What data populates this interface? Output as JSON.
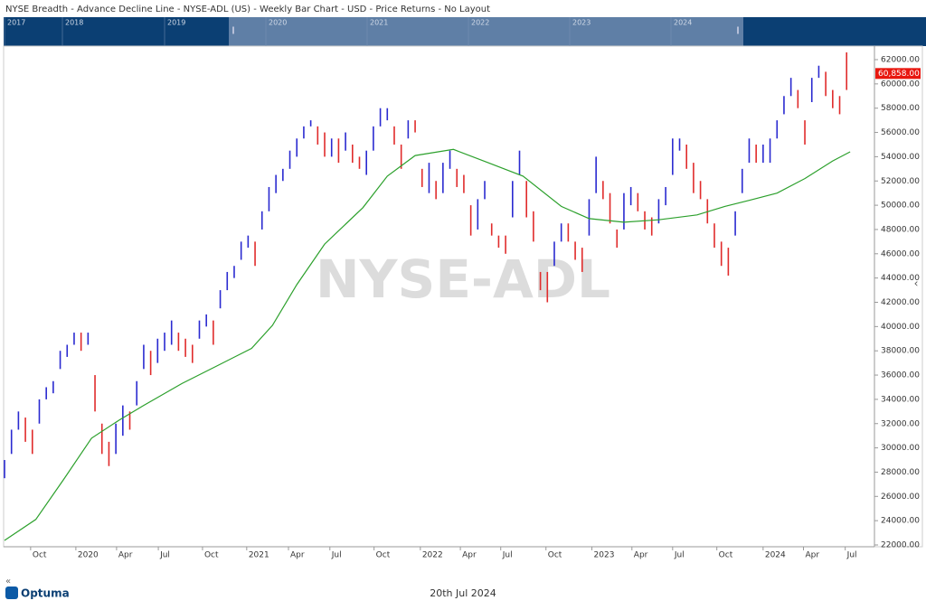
{
  "header": {
    "title": "NYSE Breadth - Advance Decline Line - NYSE-ADL (US) - Weekly Bar Chart - USD - Price Returns - No Layout"
  },
  "navigator": {
    "years": [
      "2017",
      "2018",
      "2019",
      "2020",
      "2021",
      "2022",
      "2023",
      "2024"
    ]
  },
  "watermark": "NYSE-ADL",
  "footer": {
    "brand": "Optuma",
    "date": "20th Jul 2024"
  },
  "chart_data": {
    "type": "ohlc",
    "xlim": [
      0,
      250
    ],
    "ylim": [
      22000,
      62000
    ],
    "xticks": [
      {
        "value": 7.5,
        "label": "Oct"
      },
      {
        "value": 20.5,
        "label": "2020"
      },
      {
        "value": 32.2,
        "label": "Apr"
      },
      {
        "value": 44.2,
        "label": "Jul"
      },
      {
        "value": 56.9,
        "label": "Oct"
      },
      {
        "value": 69.6,
        "label": "2021"
      },
      {
        "value": 81.6,
        "label": "Apr"
      },
      {
        "value": 93.5,
        "label": "Jul"
      },
      {
        "value": 106.2,
        "label": "Oct"
      },
      {
        "value": 119.5,
        "label": "2022"
      },
      {
        "value": 131,
        "label": "Apr"
      },
      {
        "value": 142.6,
        "label": "Jul"
      },
      {
        "value": 155.6,
        "label": "Oct"
      },
      {
        "value": 168.8,
        "label": "2023"
      },
      {
        "value": 180.3,
        "label": "Apr"
      },
      {
        "value": 192,
        "label": "Jul"
      },
      {
        "value": 204.7,
        "label": "Oct"
      },
      {
        "value": 218,
        "label": "2024"
      },
      {
        "value": 229.6,
        "label": "Apr"
      },
      {
        "value": 241.6,
        "label": "Jul"
      }
    ],
    "yticks": [
      {
        "value": 22000,
        "label": "22000.00"
      },
      {
        "value": 24000,
        "label": "24000.00"
      },
      {
        "value": 26000,
        "label": "26000.00"
      },
      {
        "value": 28000,
        "label": "28000.00"
      },
      {
        "value": 30000,
        "label": "30000.00"
      },
      {
        "value": 32000,
        "label": "32000.00"
      },
      {
        "value": 34000,
        "label": "34000.00"
      },
      {
        "value": 36000,
        "label": "36000.00"
      },
      {
        "value": 38000,
        "label": "38000.00"
      },
      {
        "value": 40000,
        "label": "40000.00"
      },
      {
        "value": 42000,
        "label": "42000.00"
      },
      {
        "value": 44000,
        "label": "44000.00"
      },
      {
        "value": 46000,
        "label": "46000.00"
      },
      {
        "value": 48000,
        "label": "48000.00"
      },
      {
        "value": 50000,
        "label": "50000.00"
      },
      {
        "value": 52000,
        "label": "52000.00"
      },
      {
        "value": 54000,
        "label": "54000.00"
      },
      {
        "value": 56000,
        "label": "56000.00"
      },
      {
        "value": 58000,
        "label": "58000.00"
      },
      {
        "value": 60000,
        "label": "60000.00"
      },
      {
        "value": 62000,
        "label": "62000.00"
      }
    ],
    "last_price": {
      "value": 60858,
      "label": "60,858.00",
      "color": "#e8170f"
    },
    "bars": {
      "x": [
        0,
        2,
        4,
        6,
        8,
        10,
        12,
        14,
        16,
        18,
        20,
        22,
        24,
        26,
        28,
        30,
        32,
        34,
        36,
        38,
        40,
        42,
        44,
        46,
        48,
        50,
        52,
        54,
        56,
        58,
        60,
        62,
        64,
        66,
        68,
        70,
        72,
        74,
        76,
        78,
        80,
        82,
        84,
        86,
        88,
        90,
        92,
        94,
        96,
        98,
        100,
        102,
        104,
        106,
        108,
        110,
        112,
        114,
        116,
        118,
        120,
        122,
        124,
        126,
        128,
        130,
        132,
        134,
        136,
        138,
        140,
        142,
        144,
        146,
        148,
        150,
        152,
        154,
        156,
        158,
        160,
        162,
        164,
        166,
        168,
        170,
        172,
        174,
        176,
        178,
        180,
        182,
        184,
        186,
        188,
        190,
        192,
        194,
        196,
        198,
        200,
        202,
        204,
        206,
        208,
        210,
        212,
        214,
        216,
        218,
        220,
        222,
        224,
        226,
        228,
        230,
        232,
        234,
        236,
        238,
        240,
        242
      ],
      "low": [
        27500,
        29500,
        31500,
        30500,
        29500,
        32000,
        34000,
        34500,
        36500,
        37500,
        38500,
        38000,
        38500,
        33000,
        29500,
        28500,
        29500,
        31000,
        31500,
        33500,
        36500,
        36000,
        37000,
        38000,
        38500,
        38000,
        37500,
        37000,
        39000,
        40000,
        38500,
        41500,
        43000,
        44000,
        45500,
        46500,
        45000,
        48000,
        49500,
        51000,
        52000,
        53000,
        54000,
        55500,
        56500,
        55000,
        54000,
        54000,
        53500,
        54500,
        53500,
        53000,
        52500,
        54500,
        56500,
        57000,
        55000,
        53000,
        55500,
        56000,
        51500,
        51000,
        50500,
        51000,
        53000,
        51500,
        51000,
        47500,
        48000,
        50500,
        47500,
        46500,
        46000,
        49000,
        52500,
        49000,
        47000,
        43000,
        42000,
        45000,
        47000,
        47000,
        45500,
        44500,
        47500,
        51000,
        50500,
        48500,
        46500,
        48000,
        50000,
        49500,
        48000,
        47500,
        48500,
        50000,
        52500,
        54500,
        53000,
        51000,
        50500,
        48500,
        46500,
        45000,
        44200,
        47500,
        51000,
        53500,
        53500,
        53500,
        53500,
        55500,
        57500,
        59000,
        58000,
        55000,
        58500,
        60500,
        59000,
        58000,
        57500,
        59500
      ],
      "high": [
        29000,
        31500,
        33000,
        32500,
        31500,
        34000,
        35000,
        35500,
        38000,
        38500,
        39500,
        39500,
        39500,
        36000,
        32000,
        30500,
        32000,
        33500,
        33000,
        35500,
        38500,
        38000,
        39000,
        39500,
        40500,
        39500,
        39000,
        38500,
        40500,
        41000,
        40500,
        43000,
        44500,
        45000,
        47000,
        47500,
        47000,
        49500,
        51500,
        52500,
        53000,
        54500,
        55500,
        56500,
        57000,
        56500,
        56000,
        55500,
        55500,
        56000,
        55000,
        54000,
        54500,
        56500,
        58000,
        58000,
        56500,
        55000,
        57000,
        57000,
        53000,
        53500,
        52000,
        53500,
        54500,
        53000,
        52500,
        50000,
        50500,
        52000,
        48500,
        47500,
        47500,
        52000,
        54500,
        52000,
        49500,
        44500,
        44500,
        47000,
        48500,
        48500,
        47000,
        46500,
        50500,
        54000,
        52000,
        51000,
        48000,
        51000,
        51500,
        51000,
        49500,
        49000,
        50500,
        51500,
        55500,
        55500,
        55000,
        53500,
        52000,
        50500,
        48500,
        47000,
        46500,
        49500,
        53000,
        55500,
        55000,
        55000,
        55500,
        57000,
        59000,
        60500,
        59500,
        57000,
        60500,
        61500,
        61000,
        59500,
        59000,
        62600
      ],
      "colors": [
        "#2a2ad0",
        "#2a2ad0",
        "#2a2ad0",
        "#e02b2b",
        "#e02b2b",
        "#2a2ad0",
        "#2a2ad0",
        "#2a2ad0",
        "#2a2ad0",
        "#2a2ad0",
        "#2a2ad0",
        "#e02b2b",
        "#2a2ad0",
        "#e02b2b",
        "#e02b2b",
        "#e02b2b",
        "#2a2ad0",
        "#2a2ad0",
        "#e02b2b",
        "#2a2ad0",
        "#2a2ad0",
        "#e02b2b",
        "#2a2ad0",
        "#2a2ad0",
        "#2a2ad0",
        "#e02b2b",
        "#e02b2b",
        "#e02b2b",
        "#2a2ad0",
        "#2a2ad0",
        "#e02b2b",
        "#2a2ad0",
        "#2a2ad0",
        "#2a2ad0",
        "#2a2ad0",
        "#2a2ad0",
        "#e02b2b",
        "#2a2ad0",
        "#2a2ad0",
        "#2a2ad0",
        "#2a2ad0",
        "#2a2ad0",
        "#2a2ad0",
        "#2a2ad0",
        "#2a2ad0",
        "#e02b2b",
        "#e02b2b",
        "#2a2ad0",
        "#e02b2b",
        "#2a2ad0",
        "#e02b2b",
        "#e02b2b",
        "#2a2ad0",
        "#2a2ad0",
        "#2a2ad0",
        "#2a2ad0",
        "#e02b2b",
        "#e02b2b",
        "#2a2ad0",
        "#e02b2b",
        "#e02b2b",
        "#2a2ad0",
        "#e02b2b",
        "#2a2ad0",
        "#2a2ad0",
        "#e02b2b",
        "#e02b2b",
        "#e02b2b",
        "#2a2ad0",
        "#2a2ad0",
        "#e02b2b",
        "#e02b2b",
        "#e02b2b",
        "#2a2ad0",
        "#2a2ad0",
        "#e02b2b",
        "#e02b2b",
        "#e02b2b",
        "#e02b2b",
        "#2a2ad0",
        "#2a2ad0",
        "#e02b2b",
        "#e02b2b",
        "#e02b2b",
        "#2a2ad0",
        "#2a2ad0",
        "#e02b2b",
        "#e02b2b",
        "#e02b2b",
        "#2a2ad0",
        "#2a2ad0",
        "#e02b2b",
        "#e02b2b",
        "#e02b2b",
        "#2a2ad0",
        "#2a2ad0",
        "#2a2ad0",
        "#2a2ad0",
        "#e02b2b",
        "#e02b2b",
        "#e02b2b",
        "#e02b2b",
        "#e02b2b",
        "#e02b2b",
        "#e02b2b",
        "#2a2ad0",
        "#2a2ad0",
        "#2a2ad0",
        "#e02b2b",
        "#2a2ad0",
        "#2a2ad0",
        "#2a2ad0",
        "#2a2ad0",
        "#2a2ad0",
        "#e02b2b",
        "#e02b2b",
        "#2a2ad0",
        "#2a2ad0",
        "#e02b2b",
        "#e02b2b",
        "#e02b2b",
        "#e02b2b"
      ]
    },
    "moving_average": {
      "color": "#2ca02c",
      "x": [
        0,
        9,
        17,
        25,
        33,
        40,
        51,
        61,
        71,
        77,
        84,
        92,
        103,
        110,
        118,
        129,
        139,
        149,
        160,
        168,
        178,
        188,
        199,
        207,
        214,
        222,
        230,
        238,
        243
      ],
      "values": [
        22370,
        24100,
        27400,
        30800,
        32300,
        33500,
        35300,
        36750,
        38200,
        40100,
        43450,
        46800,
        49800,
        52400,
        54100,
        54600,
        53500,
        52400,
        49900,
        48900,
        48600,
        48800,
        49200,
        49900,
        50400,
        51000,
        52200,
        53650,
        54400
      ]
    }
  }
}
